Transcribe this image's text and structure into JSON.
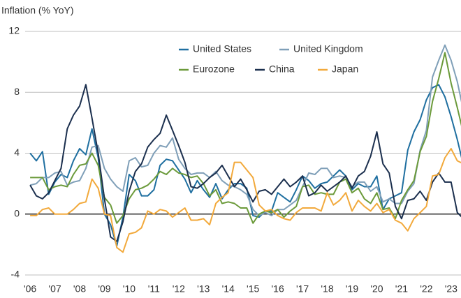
{
  "chart_data": {
    "type": "line",
    "ylabel": "Inflation (% YoY)",
    "x": [
      2006,
      2006.25,
      2006.5,
      2006.75,
      2007,
      2007.25,
      2007.5,
      2007.75,
      2008,
      2008.25,
      2008.5,
      2008.75,
      2009,
      2009.25,
      2009.5,
      2009.75,
      2010,
      2010.25,
      2010.5,
      2010.75,
      2011,
      2011.25,
      2011.5,
      2011.75,
      2012,
      2012.25,
      2012.5,
      2012.75,
      2013,
      2013.25,
      2013.5,
      2013.75,
      2014,
      2014.25,
      2014.5,
      2014.75,
      2015,
      2015.25,
      2015.5,
      2015.75,
      2016,
      2016.25,
      2016.5,
      2016.75,
      2017,
      2017.25,
      2017.5,
      2017.75,
      2018,
      2018.25,
      2018.5,
      2018.75,
      2019,
      2019.25,
      2019.5,
      2019.75,
      2020,
      2020.25,
      2020.5,
      2020.75,
      2021,
      2021.25,
      2021.5,
      2021.75,
      2022,
      2022.25,
      2022.5,
      2022.75,
      2023,
      2023.25,
      2023.5
    ],
    "series": [
      {
        "name": "United States",
        "color": "#1f6fa0",
        "values": [
          4.0,
          3.5,
          4.1,
          1.3,
          2.1,
          2.6,
          2.4,
          3.5,
          4.3,
          3.9,
          5.6,
          3.7,
          0.0,
          -0.7,
          -2.1,
          -0.2,
          2.6,
          2.2,
          1.2,
          1.2,
          1.6,
          3.2,
          3.6,
          3.5,
          2.9,
          2.3,
          1.4,
          2.2,
          1.6,
          1.1,
          2.0,
          1.0,
          1.6,
          2.0,
          2.0,
          1.7,
          -0.1,
          -0.2,
          0.2,
          0.2,
          1.4,
          1.1,
          0.8,
          1.6,
          2.5,
          2.2,
          1.7,
          2.0,
          2.1,
          2.5,
          2.9,
          2.5,
          1.6,
          2.0,
          1.8,
          1.8,
          2.5,
          0.3,
          1.0,
          1.2,
          1.4,
          4.2,
          5.4,
          6.2,
          7.5,
          8.3,
          8.5,
          7.7,
          6.4,
          4.9,
          3.2
        ]
      },
      {
        "name": "United Kingdom",
        "color": "#7f9fb8",
        "values": [
          1.9,
          2.0,
          2.4,
          2.4,
          2.7,
          2.8,
          1.9,
          2.1,
          2.2,
          3.0,
          4.4,
          4.5,
          3.0,
          2.3,
          1.8,
          1.5,
          3.5,
          3.7,
          3.1,
          3.2,
          4.0,
          4.5,
          4.4,
          5.0,
          3.6,
          3.0,
          2.6,
          2.7,
          2.7,
          2.4,
          2.8,
          2.2,
          1.9,
          1.8,
          1.6,
          1.3,
          0.3,
          -0.1,
          0.1,
          -0.1,
          0.3,
          0.3,
          0.6,
          0.9,
          1.8,
          2.7,
          2.6,
          3.0,
          3.0,
          2.4,
          2.5,
          2.4,
          1.8,
          2.1,
          2.1,
          1.5,
          1.8,
          0.8,
          1.0,
          0.7,
          0.7,
          1.5,
          2.0,
          4.2,
          5.5,
          9.0,
          10.1,
          11.1,
          10.1,
          8.7,
          6.8
        ]
      },
      {
        "name": "Eurozone",
        "color": "#6b9a3a",
        "values": [
          2.4,
          2.4,
          2.4,
          1.6,
          1.8,
          1.9,
          1.8,
          2.6,
          3.2,
          3.3,
          4.0,
          3.2,
          1.1,
          0.6,
          -0.6,
          -0.1,
          1.0,
          1.6,
          1.7,
          1.9,
          2.3,
          2.8,
          2.6,
          3.0,
          2.7,
          2.6,
          2.4,
          2.5,
          2.0,
          1.2,
          1.6,
          0.7,
          0.8,
          0.7,
          0.4,
          0.4,
          -0.6,
          0.0,
          0.2,
          0.1,
          0.3,
          -0.2,
          0.2,
          0.5,
          1.8,
          1.9,
          1.3,
          1.4,
          1.3,
          1.3,
          2.1,
          2.3,
          1.4,
          1.7,
          1.0,
          0.7,
          1.4,
          0.3,
          0.4,
          -0.3,
          0.9,
          1.6,
          2.2,
          4.1,
          5.1,
          7.4,
          8.9,
          10.6,
          8.6,
          7.0,
          5.3
        ]
      },
      {
        "name": "China",
        "color": "#1b2f4e",
        "values": [
          1.9,
          1.2,
          1.0,
          1.4,
          2.2,
          3.0,
          5.6,
          6.5,
          7.1,
          8.5,
          6.3,
          4.0,
          1.0,
          -1.5,
          -1.8,
          -0.5,
          1.5,
          2.8,
          3.3,
          4.4,
          4.9,
          5.3,
          6.5,
          5.5,
          4.5,
          3.4,
          1.8,
          1.7,
          2.0,
          2.4,
          2.7,
          3.2,
          2.5,
          1.8,
          2.3,
          1.6,
          0.8,
          1.5,
          1.6,
          1.3,
          1.8,
          2.3,
          1.8,
          2.1,
          2.5,
          1.2,
          1.4,
          1.9,
          1.5,
          1.8,
          2.1,
          2.5,
          1.7,
          2.5,
          2.8,
          3.8,
          5.4,
          3.3,
          2.7,
          0.5,
          -0.3,
          0.9,
          1.0,
          1.5,
          0.9,
          2.1,
          2.7,
          2.1,
          2.1,
          0.1,
          -0.3
        ]
      },
      {
        "name": "Japan",
        "color": "#f2a93b",
        "values": [
          -0.1,
          -0.1,
          0.3,
          0.4,
          0.0,
          0.0,
          0.0,
          0.3,
          0.7,
          0.8,
          2.3,
          1.7,
          0.0,
          -0.1,
          -2.2,
          -2.5,
          -1.3,
          -1.2,
          -0.9,
          0.2,
          0.0,
          0.3,
          0.2,
          -0.2,
          0.1,
          0.4,
          -0.4,
          -0.4,
          -0.3,
          -0.7,
          0.7,
          1.1,
          1.4,
          3.4,
          3.4,
          2.9,
          2.4,
          0.6,
          0.2,
          0.3,
          -0.1,
          -0.3,
          -0.4,
          0.1,
          0.4,
          0.4,
          0.4,
          0.2,
          1.4,
          0.6,
          0.9,
          1.4,
          0.2,
          0.9,
          0.5,
          0.2,
          0.7,
          0.1,
          0.3,
          -0.4,
          -0.6,
          -1.1,
          -0.3,
          0.1,
          0.5,
          2.5,
          2.6,
          3.7,
          4.3,
          3.5,
          3.3
        ]
      }
    ],
    "xlim": [
      2005.8,
      2023.4
    ],
    "xticks": [
      {
        "value": 2006,
        "label": "'06"
      },
      {
        "value": 2007,
        "label": "'07"
      },
      {
        "value": 2008,
        "label": "'08"
      },
      {
        "value": 2009,
        "label": "'09"
      },
      {
        "value": 2010,
        "label": "'10"
      },
      {
        "value": 2011,
        "label": "'11"
      },
      {
        "value": 2012,
        "label": "'12"
      },
      {
        "value": 2013,
        "label": "'13"
      },
      {
        "value": 2014,
        "label": "'14"
      },
      {
        "value": 2015,
        "label": "'15"
      },
      {
        "value": 2016,
        "label": "'16"
      },
      {
        "value": 2017,
        "label": "'17"
      },
      {
        "value": 2018,
        "label": "'18"
      },
      {
        "value": 2019,
        "label": "'19"
      },
      {
        "value": 2020,
        "label": "'20"
      },
      {
        "value": 2021,
        "label": "'21"
      },
      {
        "value": 2022,
        "label": "'22"
      },
      {
        "value": 2023,
        "label": "'23"
      }
    ],
    "ylim": [
      -4,
      12
    ],
    "yticks": [
      -4,
      0,
      4,
      8,
      12
    ],
    "grid": true
  }
}
